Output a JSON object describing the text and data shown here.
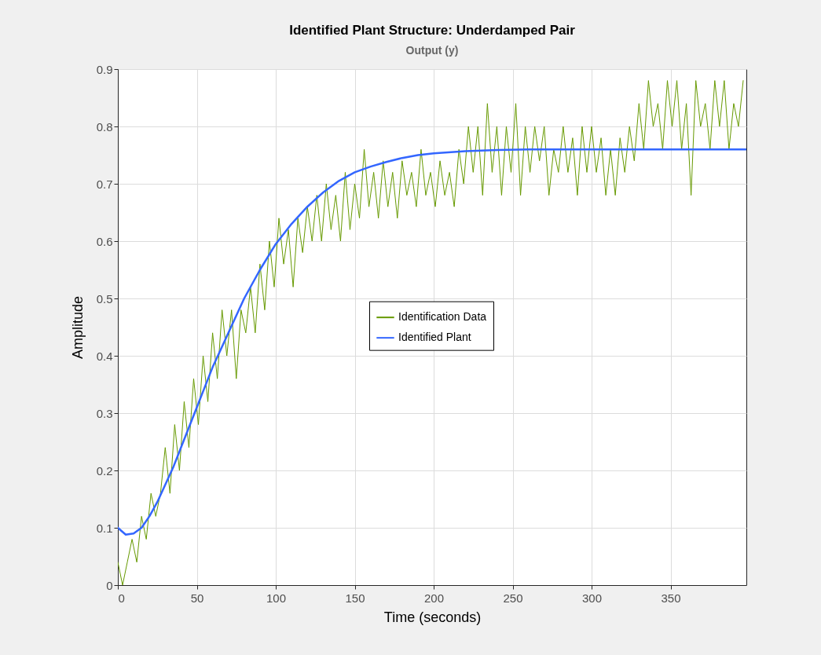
{
  "chart_data": {
    "type": "line",
    "title": "Identified Plant Structure: Underdamped Pair",
    "subtitle": "Output (y)",
    "xlabel": "Time (seconds)",
    "ylabel": "Amplitude",
    "xlim": [
      0,
      398
    ],
    "xticks": [
      0,
      50,
      100,
      150,
      200,
      250,
      300,
      350
    ],
    "ylim": [
      0,
      0.9
    ],
    "yticks": [
      0,
      0.1,
      0.2,
      0.3,
      0.4,
      0.5,
      0.6,
      0.7,
      0.8,
      0.9
    ],
    "grid": true,
    "legend": "center",
    "line_style": "solid",
    "series": [
      {
        "name": "Identification Data",
        "color": "#669900",
        "x": [
          0,
          3,
          6,
          9,
          12,
          15,
          18,
          21,
          24,
          27,
          30,
          33,
          36,
          39,
          42,
          45,
          48,
          51,
          54,
          57,
          60,
          63,
          66,
          69,
          72,
          75,
          78,
          81,
          84,
          87,
          90,
          93,
          96,
          99,
          102,
          105,
          108,
          111,
          114,
          117,
          120,
          123,
          126,
          129,
          132,
          135,
          138,
          141,
          144,
          147,
          150,
          153,
          156,
          159,
          162,
          165,
          168,
          171,
          174,
          177,
          180,
          183,
          186,
          189,
          192,
          195,
          198,
          201,
          204,
          207,
          210,
          213,
          216,
          219,
          222,
          225,
          228,
          231,
          234,
          237,
          240,
          243,
          246,
          249,
          252,
          255,
          258,
          261,
          264,
          267,
          270,
          273,
          276,
          279,
          282,
          285,
          288,
          291,
          294,
          297,
          300,
          303,
          306,
          309,
          312,
          315,
          318,
          321,
          324,
          327,
          330,
          333,
          336,
          339,
          342,
          345,
          348,
          351,
          354,
          357,
          360,
          363,
          366,
          369,
          372,
          375,
          378,
          381,
          384,
          387,
          390,
          393,
          396
        ],
        "values": [
          0.04,
          0,
          0.04,
          0.08,
          0.04,
          0.12,
          0.08,
          0.16,
          0.12,
          0.16,
          0.24,
          0.16,
          0.28,
          0.2,
          0.32,
          0.24,
          0.36,
          0.28,
          0.4,
          0.32,
          0.44,
          0.36,
          0.48,
          0.4,
          0.48,
          0.36,
          0.48,
          0.44,
          0.52,
          0.44,
          0.56,
          0.48,
          0.6,
          0.52,
          0.64,
          0.56,
          0.62,
          0.52,
          0.64,
          0.58,
          0.66,
          0.6,
          0.68,
          0.6,
          0.7,
          0.62,
          0.68,
          0.6,
          0.72,
          0.62,
          0.7,
          0.64,
          0.76,
          0.66,
          0.72,
          0.64,
          0.74,
          0.66,
          0.72,
          0.64,
          0.74,
          0.68,
          0.72,
          0.66,
          0.76,
          0.68,
          0.72,
          0.66,
          0.74,
          0.68,
          0.72,
          0.66,
          0.76,
          0.7,
          0.8,
          0.72,
          0.8,
          0.68,
          0.84,
          0.72,
          0.8,
          0.68,
          0.8,
          0.72,
          0.84,
          0.68,
          0.8,
          0.72,
          0.8,
          0.74,
          0.8,
          0.68,
          0.76,
          0.72,
          0.8,
          0.72,
          0.78,
          0.68,
          0.8,
          0.72,
          0.8,
          0.72,
          0.78,
          0.68,
          0.76,
          0.68,
          0.78,
          0.72,
          0.8,
          0.74,
          0.84,
          0.76,
          0.88,
          0.8,
          0.84,
          0.76,
          0.88,
          0.8,
          0.88,
          0.76,
          0.84,
          0.68,
          0.88,
          0.8,
          0.84,
          0.76,
          0.88,
          0.8,
          0.88,
          0.76,
          0.84,
          0.8,
          0.88
        ]
      },
      {
        "name": "Identified Plant",
        "color": "#3366ff",
        "x": [
          0,
          5,
          10,
          15,
          20,
          25,
          30,
          35,
          40,
          45,
          50,
          55,
          60,
          65,
          70,
          80,
          90,
          100,
          110,
          120,
          130,
          140,
          150,
          160,
          170,
          180,
          190,
          200,
          220,
          240,
          260,
          300,
          350,
          398
        ],
        "values": [
          0.1,
          0.088,
          0.09,
          0.1,
          0.12,
          0.145,
          0.175,
          0.205,
          0.24,
          0.275,
          0.31,
          0.345,
          0.38,
          0.41,
          0.44,
          0.5,
          0.55,
          0.595,
          0.63,
          0.66,
          0.685,
          0.705,
          0.72,
          0.73,
          0.738,
          0.745,
          0.75,
          0.753,
          0.757,
          0.759,
          0.76,
          0.76,
          0.76,
          0.76
        ]
      }
    ]
  }
}
